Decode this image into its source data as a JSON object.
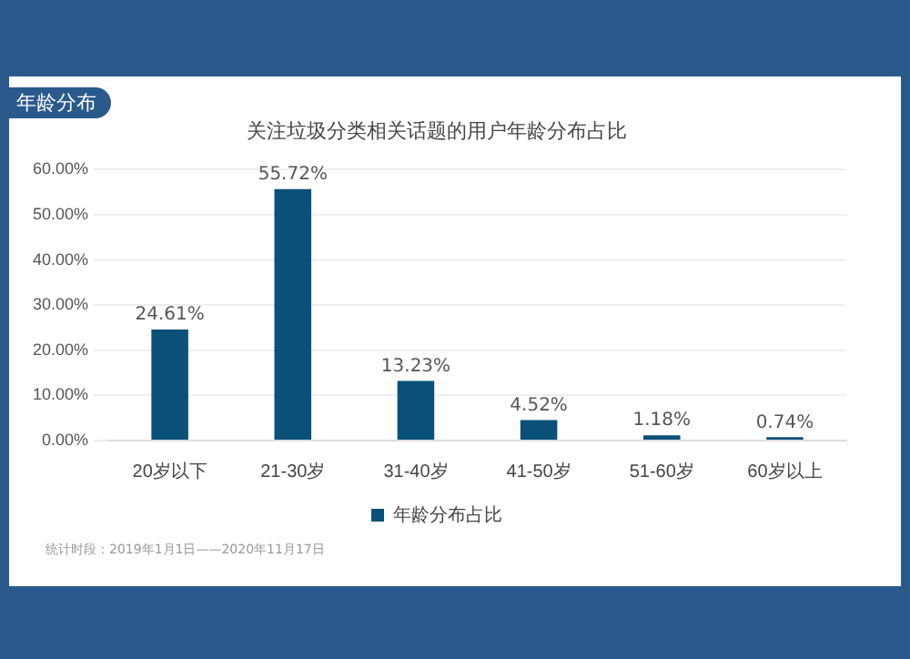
{
  "chart_data": {
    "type": "bar",
    "title": "关注垃圾分类相关话题的用户年龄分布占比",
    "categories": [
      "20岁以下",
      "21-30岁",
      "31-40岁",
      "41-50岁",
      "51-60岁",
      "60岁以上"
    ],
    "series": [
      {
        "name": "年龄分布占比",
        "color": "#0b5078",
        "values": [
          24.61,
          55.72,
          13.23,
          4.52,
          1.18,
          0.74
        ]
      }
    ],
    "ylim": [
      0,
      60
    ],
    "yticks": [
      {
        "value": 0,
        "label": "0.00%"
      },
      {
        "value": 10,
        "label": "10.00%"
      },
      {
        "value": 20,
        "label": "20.00%"
      },
      {
        "value": 30,
        "label": "30.00%"
      },
      {
        "value": 40,
        "label": "40.00%"
      },
      {
        "value": 50,
        "label": "50.00%"
      },
      {
        "value": 60,
        "label": "60.00%"
      }
    ],
    "value_labels": [
      "24.61%",
      "55.72%",
      "13.23%",
      "4.52%",
      "1.18%",
      "0.74%"
    ],
    "grid": "y",
    "legend": "bottom",
    "annotations": [
      "年龄分布",
      "统计时段：2019年1月1日——2020年11月17日"
    ]
  }
}
